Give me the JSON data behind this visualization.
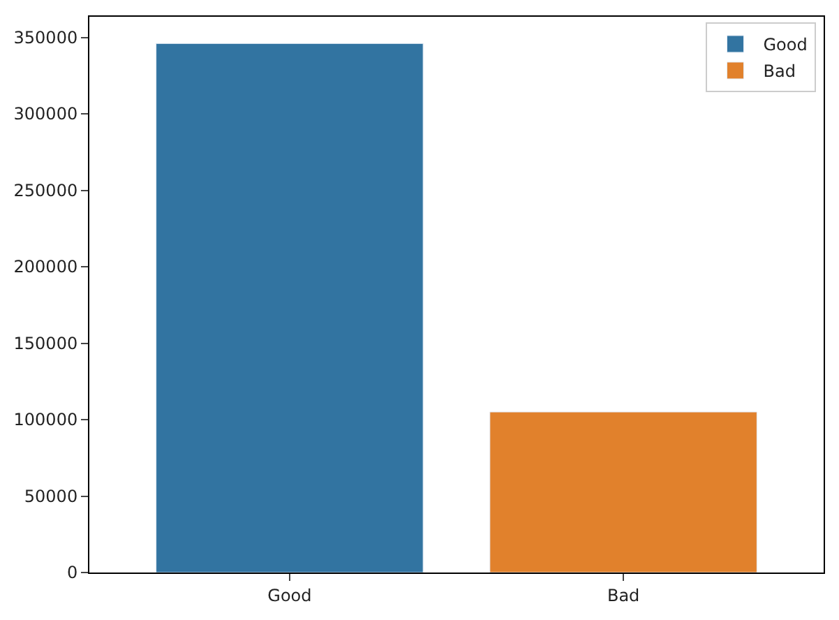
{
  "chart_data": {
    "type": "bar",
    "categories": [
      "Good",
      "Bad"
    ],
    "series": [
      {
        "name": "Good",
        "color": "#3274a1",
        "values": [
          346000,
          null
        ]
      },
      {
        "name": "Bad",
        "color": "#e1812c",
        "values": [
          null,
          105000
        ]
      }
    ],
    "ylim": [
      0,
      363500
    ],
    "yticks": [
      0,
      50000,
      100000,
      150000,
      200000,
      250000,
      300000,
      350000
    ],
    "legend": "top right"
  }
}
